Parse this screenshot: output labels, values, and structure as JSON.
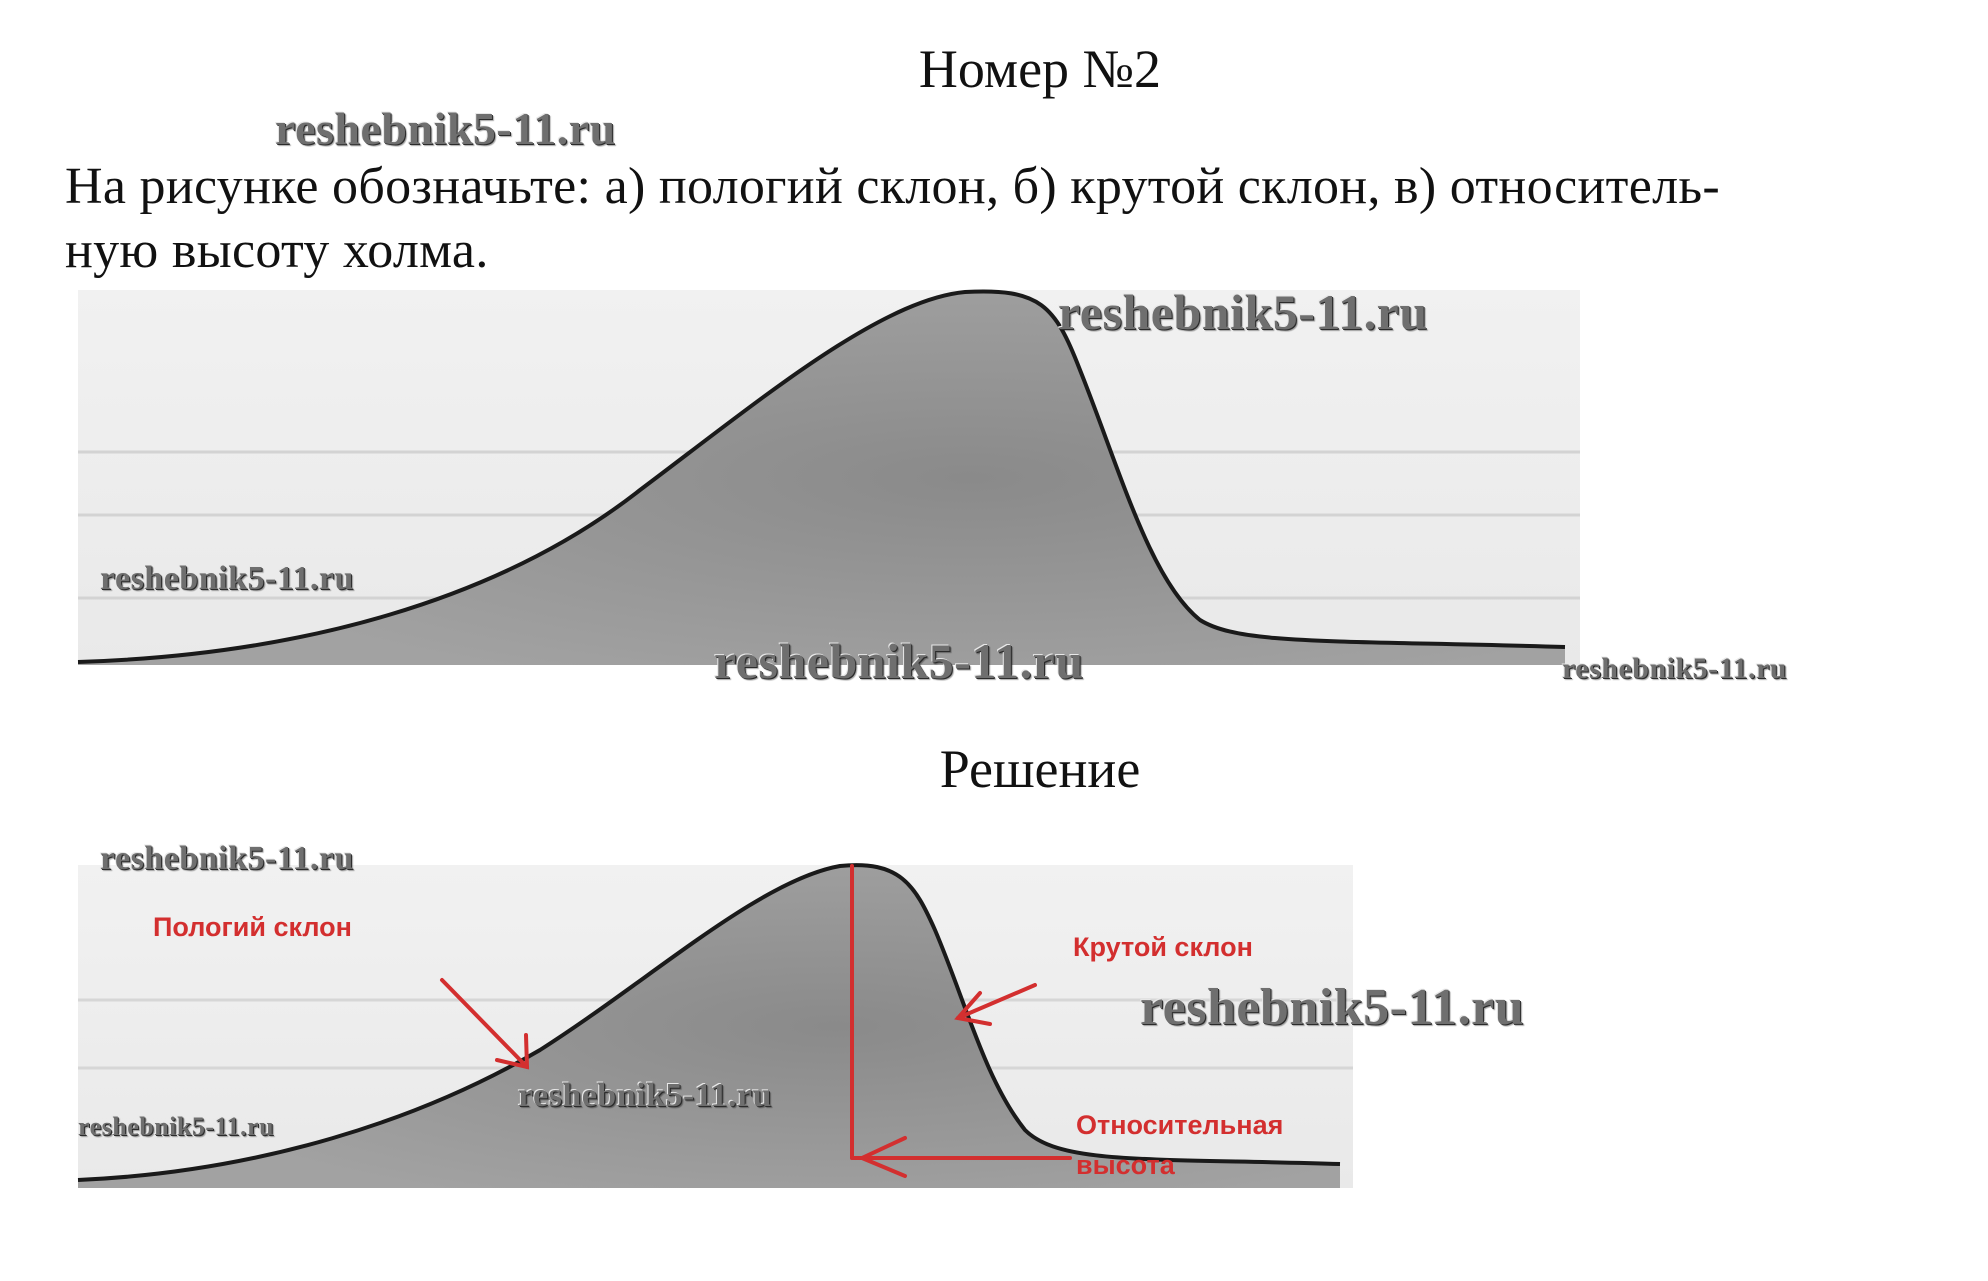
{
  "title": "Номер №2",
  "task": {
    "line1": "На рисунке обозначьте: а) пологий склон, б) крутой склон, в) относитель-",
    "line2": "ную высоту холма."
  },
  "solution_title": "Решение",
  "watermark": "reshebnik5-11.ru",
  "labels": {
    "gentle_slope": "Пологий склон",
    "steep_slope": "Крутой склон",
    "relative_height_1": "Относительная",
    "relative_height_2": "высота"
  },
  "colors": {
    "label_red": "#d32f2f",
    "hill_fill": "#8f8f8f",
    "hill_outline": "#1a1a1a"
  }
}
